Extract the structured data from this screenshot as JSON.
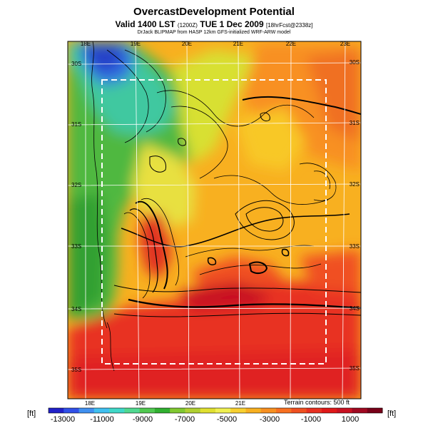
{
  "header": {
    "title": "OvercastDevelopment Potential",
    "valid_main": "Valid 1400 LST",
    "valid_paren": "(1200Z)",
    "valid_date": "TUE 1 Dec 2009",
    "valid_fcst": "[18hrFcst@2338z]",
    "credit": "DrJack BLIPMAP from HASP 12km GFS-initialized WRF-ARW model"
  },
  "map": {
    "lon_labels_top": [
      "18E",
      "19E",
      "20E",
      "21E",
      "22E",
      "23E"
    ],
    "lon_labels_bottom": [
      "18E",
      "19E",
      "20E",
      "21E"
    ],
    "lat_labels_left": [
      "30S",
      "31S",
      "32S",
      "33S",
      "34S",
      "35S"
    ],
    "lat_labels_right": [
      "30S",
      "31S",
      "32S",
      "33S",
      "34S",
      "35S"
    ],
    "terrain_note": "Terrain contours: 500 ft"
  },
  "colorbar": {
    "unit_left": "[ft]",
    "unit_right": "[ft]",
    "tick_labels": [
      "-13000",
      "-11000",
      "-9000",
      "-7000",
      "-5000",
      "-3000",
      "-1000",
      "1000"
    ],
    "colors": [
      "#2020c8",
      "#3050e8",
      "#4090f0",
      "#40c0f0",
      "#40d8c8",
      "#50d890",
      "#50c850",
      "#30b030",
      "#80c830",
      "#b0d030",
      "#e0e030",
      "#f0f050",
      "#f8d030",
      "#f8b020",
      "#f89020",
      "#f87020",
      "#f05020",
      "#e83020",
      "#e01818",
      "#c81020",
      "#a00820",
      "#780018"
    ]
  }
}
